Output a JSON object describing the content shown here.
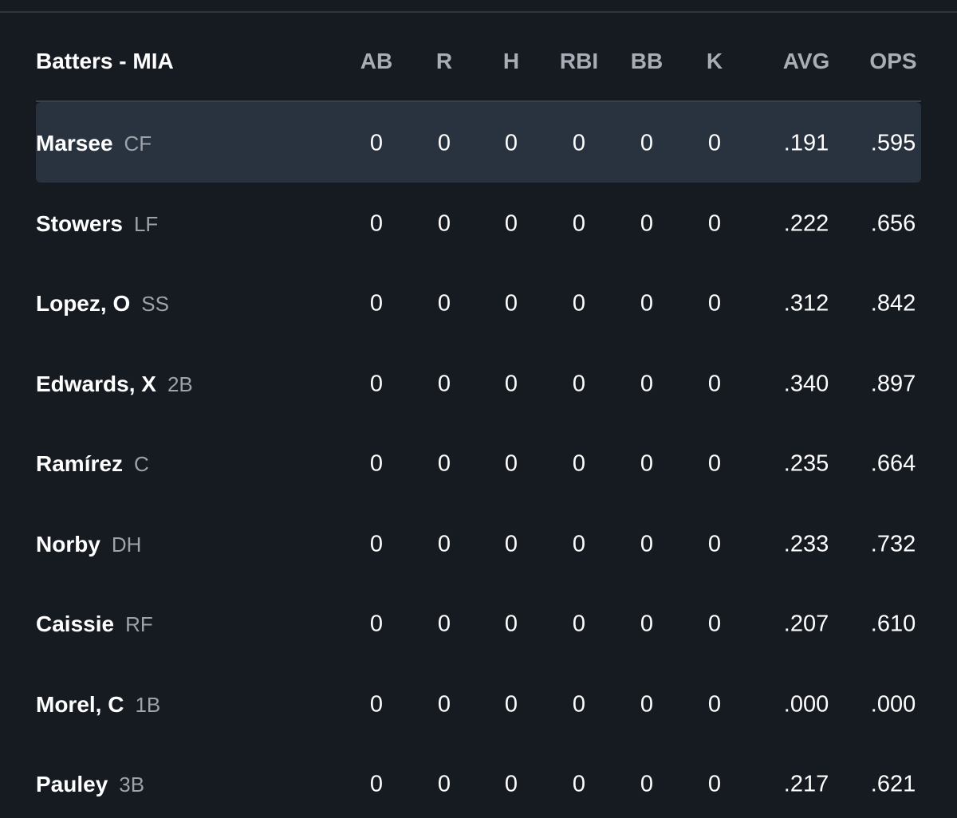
{
  "table": {
    "title": "Batters - MIA",
    "columns": [
      "AB",
      "R",
      "H",
      "RBI",
      "BB",
      "K",
      "AVG",
      "OPS"
    ],
    "rows": [
      {
        "name": "Marsee",
        "position": "CF",
        "stats": [
          "0",
          "0",
          "0",
          "0",
          "0",
          "0",
          ".191",
          ".595"
        ]
      },
      {
        "name": "Stowers",
        "position": "LF",
        "stats": [
          "0",
          "0",
          "0",
          "0",
          "0",
          "0",
          ".222",
          ".656"
        ]
      },
      {
        "name": "Lopez, O",
        "position": "SS",
        "stats": [
          "0",
          "0",
          "0",
          "0",
          "0",
          "0",
          ".312",
          ".842"
        ]
      },
      {
        "name": "Edwards, X",
        "position": "2B",
        "stats": [
          "0",
          "0",
          "0",
          "0",
          "0",
          "0",
          ".340",
          ".897"
        ]
      },
      {
        "name": "Ramírez",
        "position": "C",
        "stats": [
          "0",
          "0",
          "0",
          "0",
          "0",
          "0",
          ".235",
          ".664"
        ]
      },
      {
        "name": "Norby",
        "position": "DH",
        "stats": [
          "0",
          "0",
          "0",
          "0",
          "0",
          "0",
          ".233",
          ".732"
        ]
      },
      {
        "name": "Caissie",
        "position": "RF",
        "stats": [
          "0",
          "0",
          "0",
          "0",
          "0",
          "0",
          ".207",
          ".610"
        ]
      },
      {
        "name": "Morel, C",
        "position": "1B",
        "stats": [
          "0",
          "0",
          "0",
          "0",
          "0",
          "0",
          ".000",
          ".000"
        ]
      },
      {
        "name": "Pauley",
        "position": "3B",
        "stats": [
          "0",
          "0",
          "0",
          "0",
          "0",
          "0",
          ".217",
          ".621"
        ]
      }
    ]
  }
}
